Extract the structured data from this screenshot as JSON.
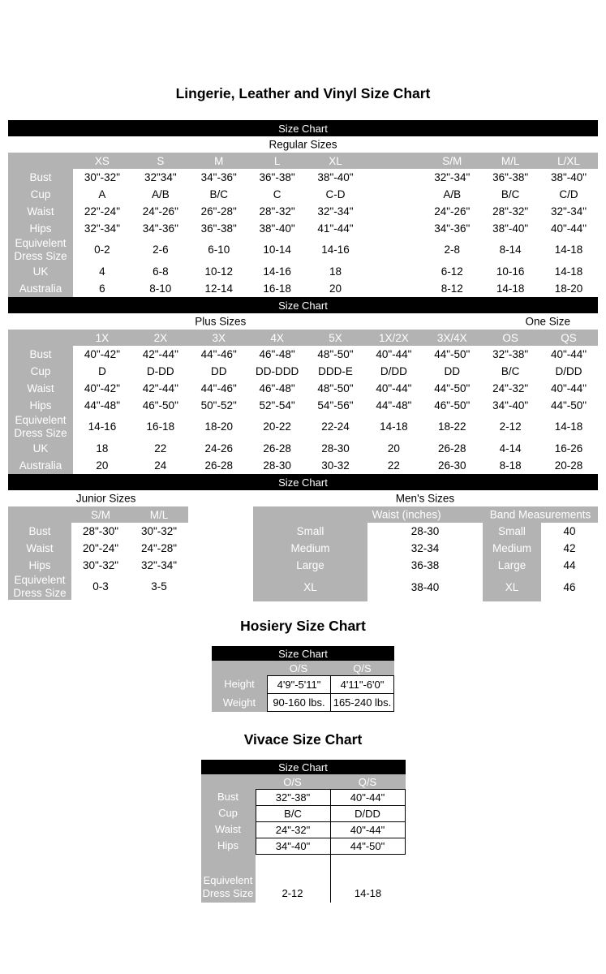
{
  "doc_title": "Lingerie, Leather and Vinyl Size Chart",
  "size_chart_bar": "Size Chart",
  "regular": {
    "section_label": "Regular Sizes",
    "table": {
      "header": [
        "",
        "XS",
        "S",
        "M",
        "L",
        "XL",
        "",
        "S/M",
        "M/L",
        "L/XL"
      ],
      "rows": [
        {
          "label": "Bust",
          "values": [
            "30\"-32\"",
            "32\"34\"",
            "34\"-36\"",
            "36\"-38\"",
            "38\"-40\"",
            "",
            "32\"-34\"",
            "36\"-38\"",
            "38\"-40\""
          ]
        },
        {
          "label": "Cup",
          "values": [
            "A",
            "A/B",
            "B/C",
            "C",
            "C-D",
            "",
            "A/B",
            "B/C",
            "C/D"
          ]
        },
        {
          "label": "Waist",
          "values": [
            "22\"-24\"",
            "24\"-26\"",
            "26\"-28\"",
            "28\"-32\"",
            "32\"-34\"",
            "",
            "24\"-26\"",
            "28\"-32\"",
            "32\"-34\""
          ]
        },
        {
          "label": "Hips",
          "values": [
            "32\"-34\"",
            "34\"-36\"",
            "36\"-38\"",
            "38\"-40\"",
            "41\"-44\"",
            "",
            "34\"-36\"",
            "38\"-40\"",
            "40\"-44\""
          ]
        },
        {
          "label": "Equivelent\nDress Size",
          "values": [
            "0-2",
            "2-6",
            "6-10",
            "10-14",
            "14-16",
            "",
            "2-8",
            "8-14",
            "14-18"
          ]
        },
        {
          "label": "UK",
          "values": [
            "4",
            "6-8",
            "10-12",
            "14-16",
            "18",
            "",
            "6-12",
            "10-16",
            "14-18"
          ]
        },
        {
          "label": "Australia",
          "values": [
            "6",
            "8-10",
            "12-14",
            "16-18",
            "20",
            "",
            "8-12",
            "14-18",
            "18-20"
          ]
        }
      ]
    }
  },
  "plus": {
    "section_label": "Plus Sizes",
    "one_size_label": "One Size",
    "table": {
      "header": [
        "",
        "1X",
        "2X",
        "3X",
        "4X",
        "5X",
        "1X/2X",
        "3X/4X",
        "OS",
        "QS"
      ],
      "rows": [
        {
          "label": "Bust",
          "values": [
            "40\"-42\"",
            "42\"-44\"",
            "44\"-46\"",
            "46\"-48\"",
            "48\"-50\"",
            "40\"-44\"",
            "44\"-50\"",
            "32\"-38\"",
            "40\"-44\""
          ]
        },
        {
          "label": "Cup",
          "values": [
            "D",
            "D-DD",
            "DD",
            "DD-DDD",
            "DDD-E",
            "D/DD",
            "DD",
            "B/C",
            "D/DD"
          ]
        },
        {
          "label": "Waist",
          "values": [
            "40\"-42\"",
            "42\"-44\"",
            "44\"-46\"",
            "46\"-48\"",
            "48\"-50\"",
            "40\"-44\"",
            "44\"-50\"",
            "24\"-32\"",
            "40\"-44\""
          ]
        },
        {
          "label": "Hips",
          "values": [
            "44\"-48\"",
            "46\"-50\"",
            "50\"-52\"",
            "52\"-54\"",
            "54\"-56\"",
            "44\"-48\"",
            "46\"-50\"",
            "34\"-40\"",
            "44\"-50\""
          ]
        },
        {
          "label": "Equivelent\nDress Size",
          "values": [
            "14-16",
            "16-18",
            "18-20",
            "20-22",
            "22-24",
            "14-18",
            "18-22",
            "2-12",
            "14-18"
          ]
        },
        {
          "label": "UK",
          "values": [
            "18",
            "22",
            "24-26",
            "26-28",
            "28-30",
            "20",
            "26-28",
            "4-14",
            "16-26"
          ]
        },
        {
          "label": "Australia",
          "values": [
            "20",
            "24",
            "26-28",
            "28-30",
            "30-32",
            "22",
            "26-30",
            "8-18",
            "20-28"
          ]
        }
      ]
    }
  },
  "junior": {
    "section_label": "Junior Sizes",
    "table": {
      "header": [
        "",
        "S/M",
        "M/L"
      ],
      "rows": [
        {
          "label": "Bust",
          "values": [
            "28\"-30\"",
            "30\"-32\""
          ]
        },
        {
          "label": "Waist",
          "values": [
            "20\"-24\"",
            "24\"-28\""
          ]
        },
        {
          "label": "Hips",
          "values": [
            "30\"-32\"",
            "32\"-34\""
          ]
        },
        {
          "label": "Equivelent\nDress Size",
          "values": [
            "0-3",
            "3-5"
          ]
        }
      ]
    }
  },
  "mens": {
    "section_label": "Men's Sizes",
    "waist_header": "Waist (inches)",
    "band_header": "Band Measurements",
    "table": {
      "gray_cols": [
        0,
        2
      ],
      "rows": [
        {
          "label": "Small",
          "values": [
            "28-30",
            "Small",
            "40"
          ]
        },
        {
          "label": "Medium",
          "values": [
            "32-34",
            "Medium",
            "42"
          ]
        },
        {
          "label": "Large",
          "values": [
            "36-38",
            "Large",
            "44"
          ]
        },
        {
          "label": "XL",
          "values": [
            "38-40",
            "XL",
            "46"
          ],
          "kind": "tall"
        }
      ]
    }
  },
  "hosiery": {
    "title": "Hosiery Size Chart",
    "table": {
      "header": [
        "",
        "O/S",
        "Q/S"
      ],
      "rows": [
        {
          "label": "Height",
          "values": [
            "4'9\"-5'11\"",
            "4'11\"-6'0\""
          ],
          "kind": "b"
        },
        {
          "label": "Weight",
          "values": [
            "90-160 lbs.",
            "165-240 lbs."
          ],
          "kind": "bend"
        }
      ]
    }
  },
  "vivace": {
    "title": "Vivace Size Chart",
    "table": {
      "header": [
        "",
        "O/S",
        "Q/S"
      ],
      "rows": [
        {
          "label": "Bust",
          "values": [
            "32\"-38\"",
            "40\"-44\""
          ],
          "kind": "b"
        },
        {
          "label": "Cup",
          "values": [
            "B/C",
            "D/DD"
          ],
          "kind": "b"
        },
        {
          "label": "Waist",
          "values": [
            "24\"-32\"",
            "40\"-44\""
          ],
          "kind": "b"
        },
        {
          "label": "Hips",
          "values": [
            "34\"-40\"",
            "44\"-50\""
          ],
          "kind": "b"
        },
        {
          "label": "",
          "values": [
            "",
            ""
          ],
          "kind": "gap"
        },
        {
          "label": "Equivelent\nDress Size",
          "values": [
            "2-12",
            "14-18"
          ],
          "kind": "end"
        }
      ]
    }
  }
}
